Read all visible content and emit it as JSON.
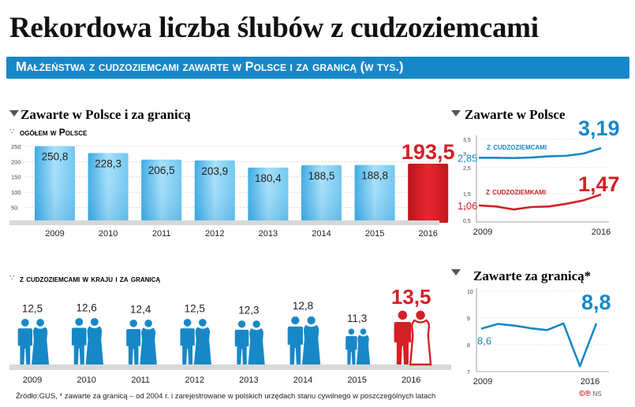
{
  "title": "Rekordowa liczba ślubów z cudzoziemcami",
  "subtitle": "Małżeństwa z cudzoziemcami zawarte w Polsce i za granicą (w tys.)",
  "source": "Źródło:GUS, * zawarte za granicą – od 2004 r. i zarejestrowane w polskich urzędach stanu cywilnego w poszczególnych latach",
  "credits": {
    "logo": "©℗",
    "author": "NS"
  },
  "colors": {
    "blue": "#1788c7",
    "light_blue": "#5fc3ef",
    "red": "#d51f26",
    "gray_band": "#d7d8d9"
  },
  "chart_data": [
    {
      "id": "main-bars",
      "type": "bar",
      "title": "Zawarte w Polsce i za granicą",
      "subtitle": "ogółem w Polsce",
      "categories": [
        "2009",
        "2010",
        "2011",
        "2012",
        "2013",
        "2014",
        "2015",
        "2016"
      ],
      "values": [
        250.8,
        228.3,
        206.5,
        203.9,
        180.4,
        188.5,
        188.8,
        193.5
      ],
      "value_labels": [
        "250,8",
        "228,3",
        "206,5",
        "203,9",
        "180,4",
        "188,5",
        "188,8",
        "193,5"
      ],
      "yticks": [
        "0",
        "50",
        "100",
        "150",
        "200",
        "250"
      ],
      "ylim": [
        0,
        260
      ],
      "highlight": "2016"
    },
    {
      "id": "pictogram",
      "type": "bar",
      "title": "z cudzoziemcami w kraju i za granicą",
      "categories": [
        "2009",
        "2010",
        "2011",
        "2012",
        "2013",
        "2014",
        "2015",
        "2016"
      ],
      "values": [
        12.5,
        12.6,
        12.4,
        12.5,
        12.3,
        12.8,
        11.3,
        13.5
      ],
      "value_labels": [
        "12,5",
        "12,6",
        "12,4",
        "12,5",
        "12,3",
        "12,8",
        "11,3",
        "13,5"
      ],
      "highlight": "2016"
    },
    {
      "id": "poland-lines",
      "type": "line",
      "title": "Zawarte w Polsce",
      "x": [
        "2009",
        "2010",
        "2011",
        "2012",
        "2013",
        "2014",
        "2015",
        "2016"
      ],
      "xticks": [
        "2009",
        "2016"
      ],
      "series": [
        {
          "name": "z cudzoziemcami",
          "values": [
            2.85,
            2.85,
            2.84,
            2.86,
            2.9,
            2.92,
            3.0,
            3.19
          ],
          "start_label": "2,85",
          "end_label": "3,19"
        },
        {
          "name": "z cudzoziemkami",
          "values": [
            1.06,
            1.02,
            0.91,
            1.0,
            1.02,
            1.12,
            1.25,
            1.47
          ],
          "start_label": "1,06",
          "end_label": "1,47"
        }
      ],
      "yticks_upper": [
        "2,5",
        "3",
        "3,5"
      ],
      "yticks_lower": [
        "0,5",
        "1",
        "1,5"
      ]
    },
    {
      "id": "abroad-line",
      "type": "line",
      "title": "Zawarte za granicą*",
      "x": [
        "2009",
        "2010",
        "2011",
        "2012",
        "2013",
        "2014",
        "2015",
        "2016"
      ],
      "xticks": [
        "2009",
        "2016"
      ],
      "series": [
        {
          "name": "",
          "values": [
            8.6,
            8.78,
            8.72,
            8.62,
            8.55,
            8.8,
            7.2,
            8.8
          ],
          "start_label": "8,6",
          "end_label": "8,8"
        }
      ],
      "yticks": [
        "7",
        "8",
        "9",
        "10"
      ],
      "ylim": [
        7,
        10
      ]
    }
  ]
}
